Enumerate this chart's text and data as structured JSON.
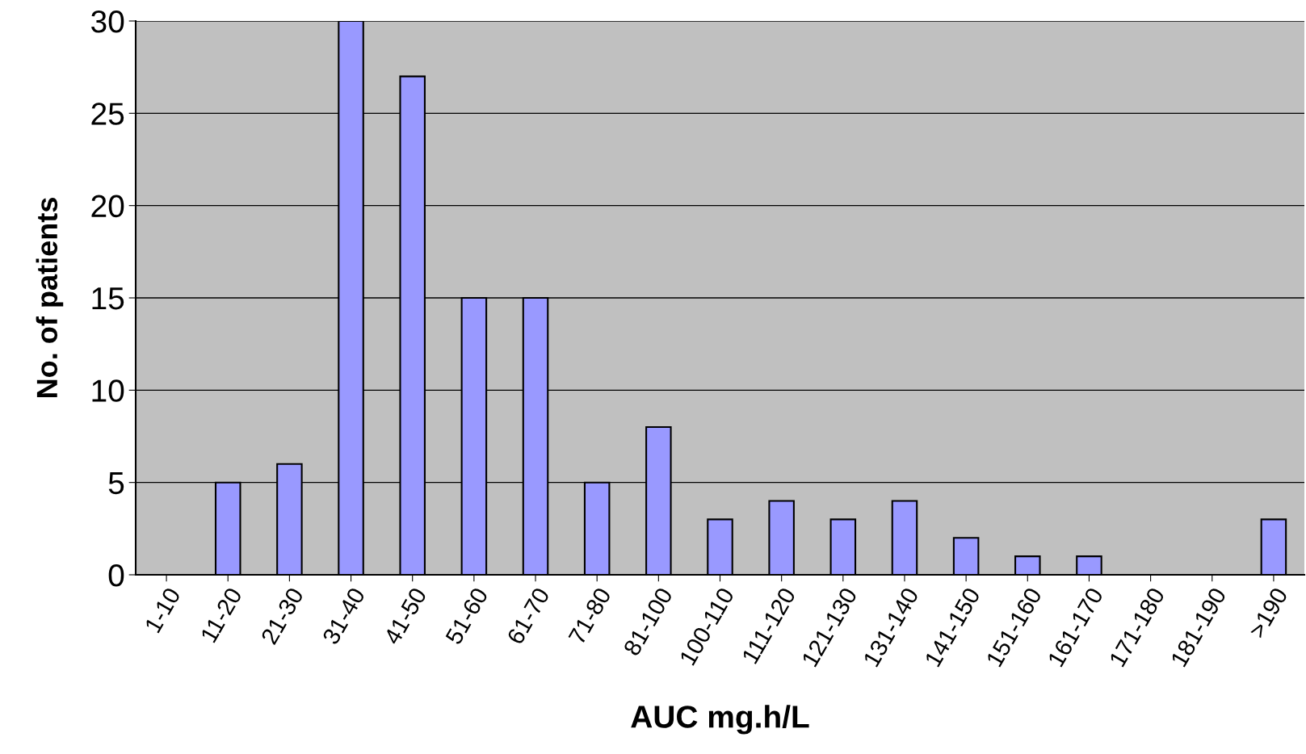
{
  "chart_data": {
    "type": "bar",
    "xlabel": "AUC mg.h/L",
    "ylabel": "No. of patients",
    "categories": [
      "1-10",
      "11-20",
      "21-30",
      "31-40",
      "41-50",
      "51-60",
      "61-70",
      "71-80",
      "81-100",
      "100-110",
      "111-120",
      "121-130",
      "131-140",
      "141-150",
      "151-160",
      "161-170",
      "171-180",
      "181-190",
      ">190"
    ],
    "values": [
      0,
      5,
      6,
      30,
      27,
      15,
      15,
      5,
      8,
      3,
      4,
      3,
      4,
      2,
      1,
      1,
      0,
      0,
      3
    ],
    "color": "#9999ff",
    "ylim": [
      0,
      30
    ],
    "yticks": [
      0,
      5,
      10,
      15,
      20,
      25,
      30
    ],
    "grid": "y",
    "legend": false
  }
}
